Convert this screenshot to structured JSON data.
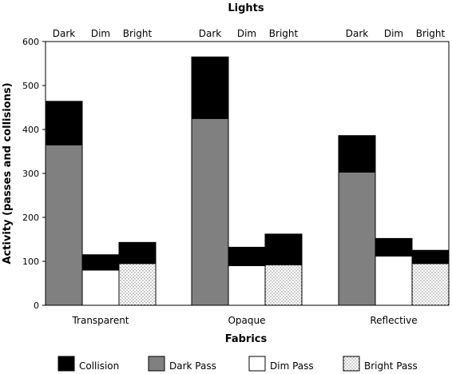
{
  "chart_data": {
    "type": "bar",
    "stacked": true,
    "title": "Lights",
    "xlabel": "Fabrics",
    "ylabel": "Activity (passes and collisions)",
    "ylim": [
      0,
      600
    ],
    "yticks": [
      0,
      100,
      200,
      300,
      400,
      500,
      600
    ],
    "categories": [
      "Transparent",
      "Opaque",
      "Reflective"
    ],
    "lights": [
      "Dark",
      "Dim",
      "Bright"
    ],
    "series": [
      {
        "name": "Collision",
        "color": "#000000",
        "values": [
          [
            99,
            35,
            48
          ],
          [
            140,
            42,
            70
          ],
          [
            83,
            40,
            30
          ]
        ]
      },
      {
        "name": "Dark Pass",
        "color": "#808080",
        "values": [
          [
            365,
            0,
            0
          ],
          [
            425,
            0,
            0
          ],
          [
            303,
            0,
            0
          ]
        ]
      },
      {
        "name": "Dim Pass",
        "color": "#ffffff",
        "values": [
          [
            0,
            80,
            0
          ],
          [
            0,
            90,
            0
          ],
          [
            0,
            112,
            0
          ]
        ]
      },
      {
        "name": "Bright Pass",
        "color": "dotted",
        "values": [
          [
            0,
            0,
            95
          ],
          [
            0,
            0,
            92
          ],
          [
            0,
            0,
            95
          ]
        ]
      }
    ],
    "legend_position": "bottom",
    "grid": false
  }
}
